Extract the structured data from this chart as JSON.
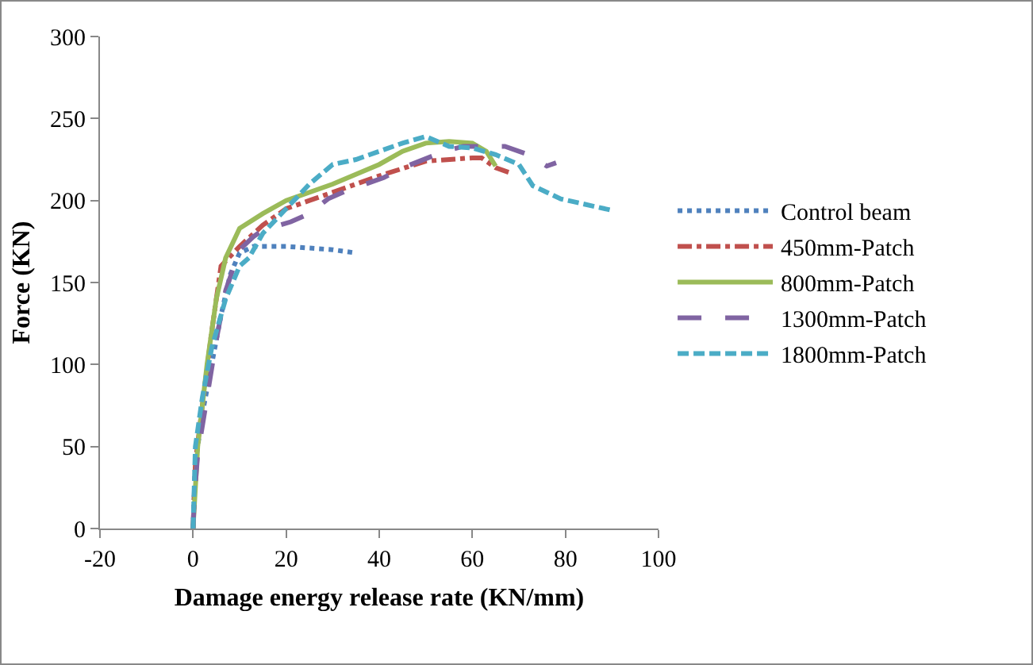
{
  "chart_data": {
    "type": "line",
    "xlabel": "Damage energy release rate (KN/mm)",
    "ylabel": "Force (KN)",
    "xlim": [
      -20,
      100
    ],
    "xticks": [
      -20,
      0,
      20,
      40,
      60,
      80,
      100
    ],
    "ylim": [
      0,
      300
    ],
    "yticks": [
      0,
      50,
      100,
      150,
      200,
      250,
      300
    ],
    "grid": false,
    "legend": "right",
    "marker": "none",
    "series": [
      {
        "name": "Control beam",
        "color": "#4f81bd",
        "line_style": "dotted",
        "x": [
          0,
          0.5,
          2,
          4,
          6,
          8,
          10,
          13,
          20,
          30,
          35
        ],
        "values": [
          0,
          40,
          70,
          100,
          130,
          155,
          168,
          172,
          172,
          170,
          168
        ]
      },
      {
        "name": "450mm-Patch",
        "color": "#c0504d",
        "line_style": "dashdot",
        "x": [
          0,
          0.5,
          2,
          4,
          6,
          10,
          15,
          20,
          25,
          30,
          40,
          50,
          60,
          62,
          65,
          68
        ],
        "values": [
          0,
          40,
          75,
          120,
          160,
          172,
          185,
          195,
          200,
          205,
          215,
          224,
          226,
          226,
          220,
          217
        ]
      },
      {
        "name": "800mm-Patch",
        "color": "#9bbb59",
        "line_style": "solid",
        "x": [
          0,
          1,
          3,
          5,
          7,
          10,
          15,
          20,
          30,
          40,
          45,
          50,
          55,
          60,
          63,
          65
        ],
        "values": [
          0,
          50,
          100,
          140,
          165,
          183,
          192,
          200,
          210,
          222,
          230,
          235,
          236,
          235,
          230,
          221
        ]
      },
      {
        "name": "1300mm-Patch",
        "color": "#8064a2",
        "line_style": "longdash",
        "x": [
          0,
          0.3,
          1,
          3,
          5,
          7,
          10,
          13,
          15,
          21,
          25,
          29,
          33,
          41,
          46,
          54,
          58,
          67,
          72,
          76,
          78
        ],
        "values": [
          0,
          20,
          45,
          80,
          115,
          145,
          170,
          178,
          182,
          187,
          192,
          201,
          206,
          214,
          221,
          230,
          233,
          233,
          228,
          221,
          223
        ]
      },
      {
        "name": "1800mm-Patch",
        "color": "#4bacc6",
        "line_style": "dashed",
        "x": [
          0,
          0.5,
          2,
          4,
          7,
          10,
          12,
          15,
          20,
          25,
          30,
          35,
          40,
          45,
          50,
          55,
          60,
          65,
          70,
          73,
          79,
          90
        ],
        "values": [
          0,
          50,
          80,
          110,
          140,
          160,
          165,
          180,
          195,
          210,
          222,
          225,
          230,
          235,
          239,
          233,
          232,
          228,
          222,
          209,
          201,
          194
        ]
      }
    ]
  }
}
